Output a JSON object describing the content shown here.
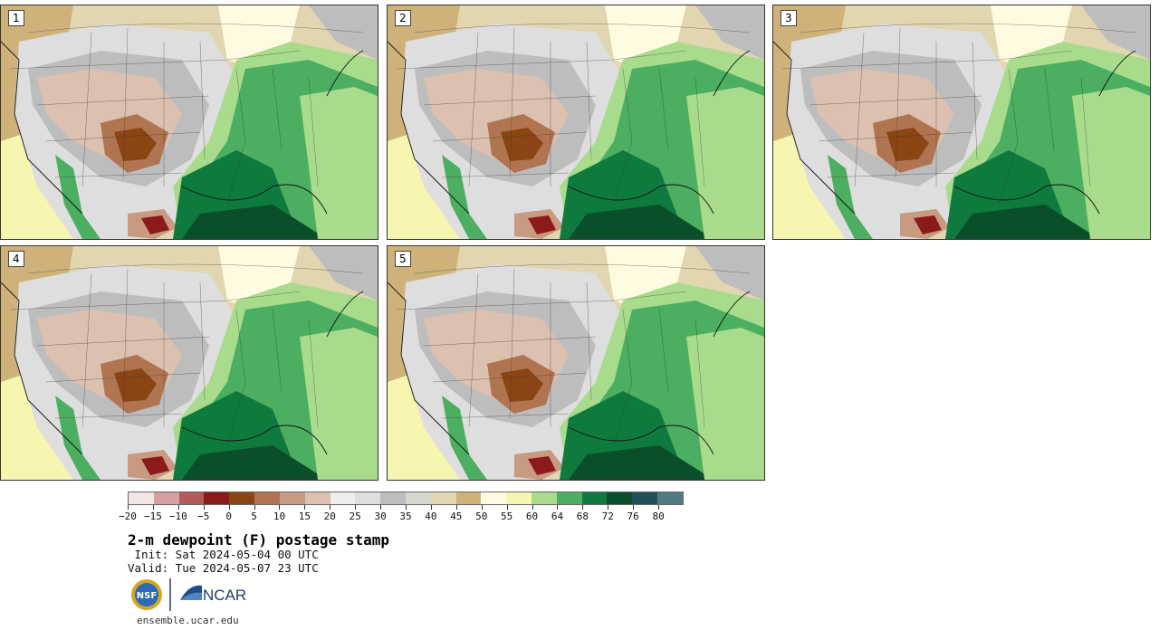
{
  "panels": [
    {
      "label": "1"
    },
    {
      "label": "2"
    },
    {
      "label": "3"
    },
    {
      "label": "4"
    },
    {
      "label": "5"
    }
  ],
  "colorbar": {
    "colors": [
      "#f2e6e6",
      "#d6a0a0",
      "#b35a5a",
      "#8c1a1a",
      "#8b4513",
      "#b07550",
      "#c89a80",
      "#dcc0b0",
      "#eeeeee",
      "#dedede",
      "#bdbdbd",
      "#d6d6d0",
      "#e2d6b0",
      "#cfb27a",
      "#fffbe0",
      "#f6f6b0",
      "#a8dc8c",
      "#4cae60",
      "#0f7a3e",
      "#0a4f2a",
      "#1e5058",
      "#4e7c80"
    ],
    "tick_labels": [
      "−20",
      "−15",
      "−10",
      "−5",
      "0",
      "5",
      "10",
      "15",
      "20",
      "25",
      "30",
      "35",
      "40",
      "45",
      "50",
      "55",
      "60",
      "64",
      "68",
      "72",
      "76",
      "80"
    ]
  },
  "title": "2-m dewpoint (F) postage stamp",
  "init": " Init: Sat 2024-05-04 00 UTC",
  "valid": "Valid: Tue 2024-05-07 23 UTC",
  "logos": {
    "nsf": "NSF",
    "ncar": "NCAR"
  },
  "footer": "ensemble.ucar.edu"
}
